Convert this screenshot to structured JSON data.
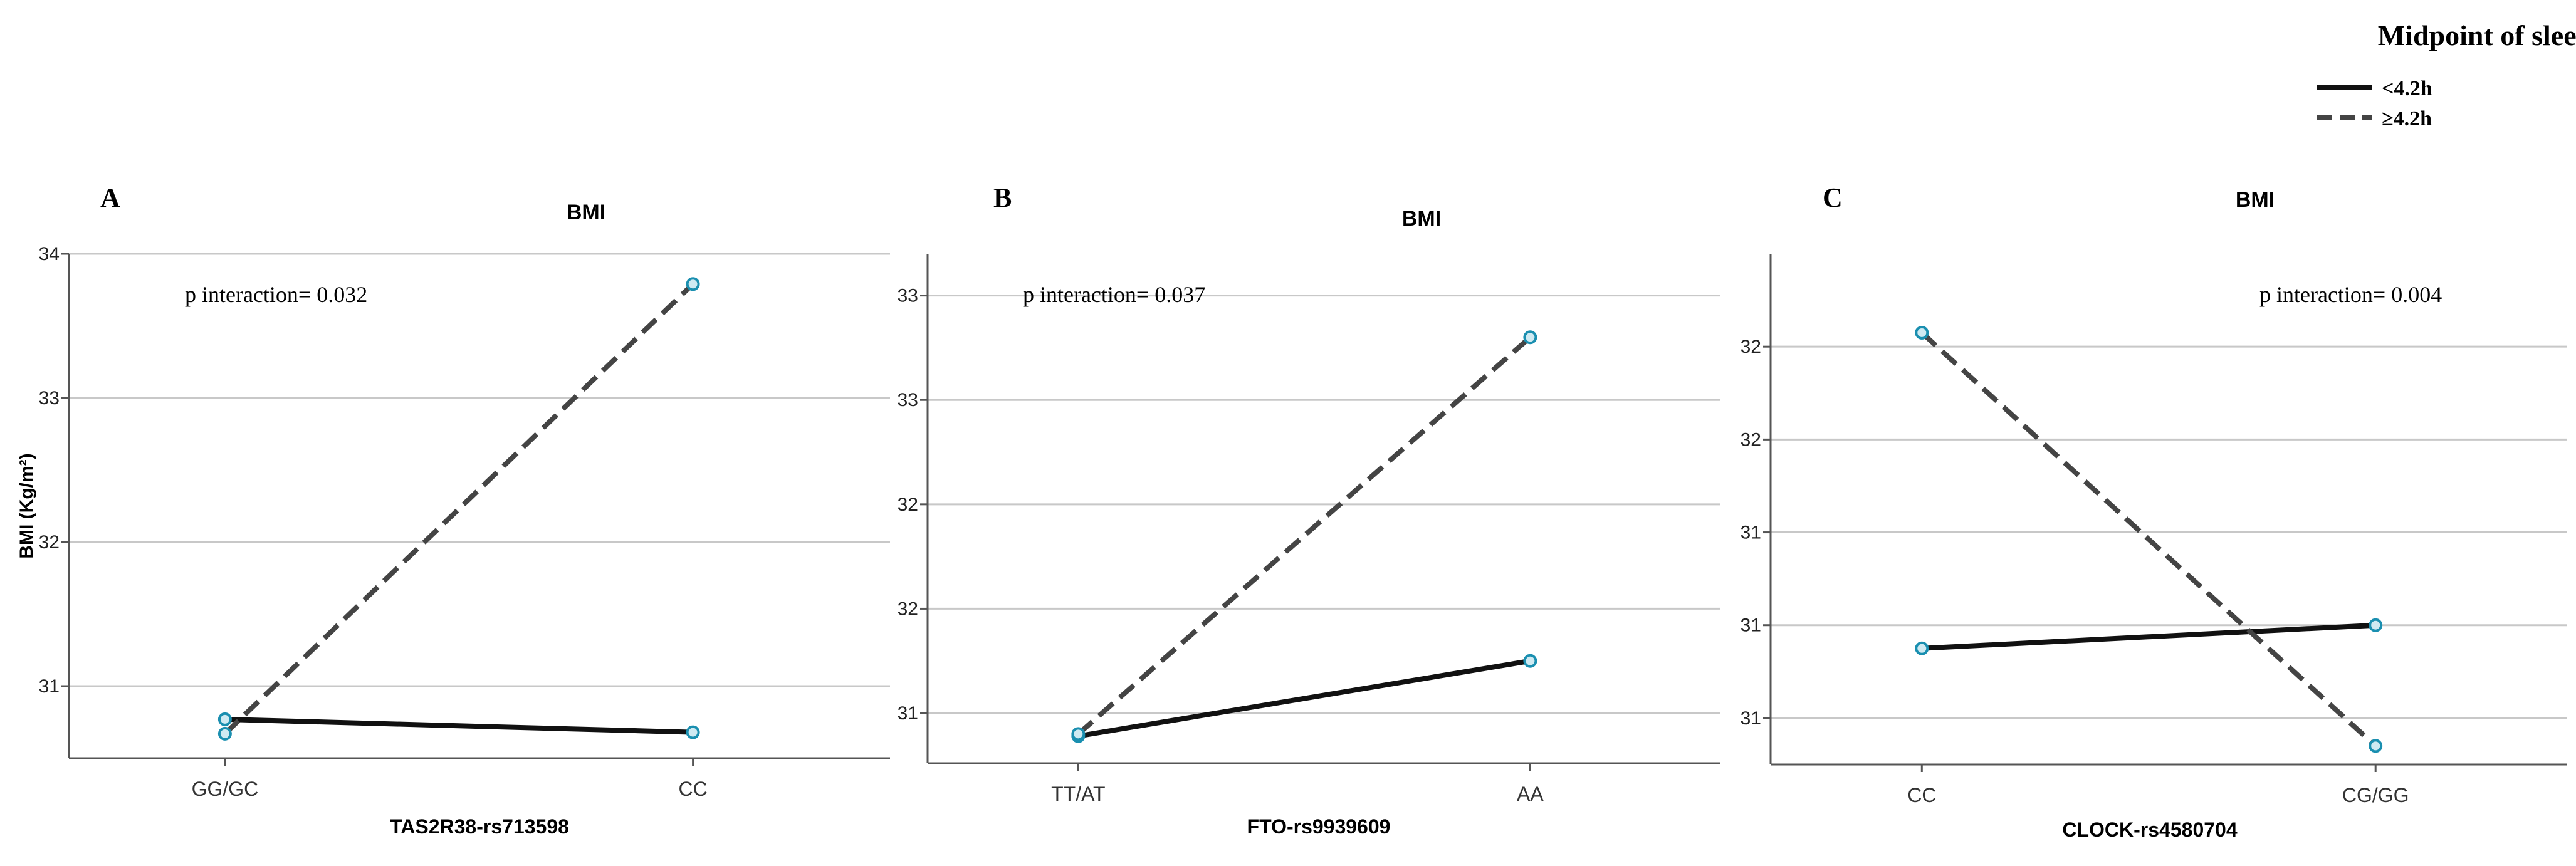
{
  "legend": {
    "title": "Midpoint of sleep",
    "placement": "top-right",
    "entries": [
      {
        "label": "<4.2h",
        "style": "solid"
      },
      {
        "label": "≥4.2h",
        "style": "dashed"
      }
    ]
  },
  "colors": {
    "solid_line": "#111111",
    "dashed_line": "#444444",
    "marker_stroke": "#1a8fb0",
    "marker_fill": "#cfeaf2",
    "grid": "#c8c8c8",
    "axis": "#555555"
  },
  "chart_data": [
    {
      "type": "line",
      "panel_letter": "A",
      "title": "BMI",
      "xlabel": "TAS2R38-rs713598",
      "ylabel": "BMI (Kg/m²)",
      "categories": [
        "GG/GC",
        "CC"
      ],
      "ylim": [
        30.5,
        34.0
      ],
      "y_ticks": [
        31,
        32,
        33,
        34
      ],
      "y_tick_labels": [
        "31",
        "32",
        "33",
        "34"
      ],
      "grid": true,
      "annotation": "p interaction= 0.032",
      "series": [
        {
          "name": "<4.2h",
          "values": [
            30.77,
            30.68
          ]
        },
        {
          "name": "≥4.2h",
          "values": [
            30.67,
            33.79
          ]
        }
      ]
    },
    {
      "type": "line",
      "panel_letter": "B",
      "title": "BMI",
      "xlabel": "FTO-rs9939609",
      "ylabel": "",
      "categories": [
        "TT/AT",
        "AA"
      ],
      "ylim": [
        30.56,
        33.0
      ],
      "y_ticks": [
        30.8,
        31.3,
        31.8,
        32.3,
        32.8
      ],
      "y_tick_labels": [
        "31",
        "32",
        "32",
        "33",
        "33"
      ],
      "grid": true,
      "annotation": "p interaction= 0.037",
      "series": [
        {
          "name": "<4.2h",
          "values": [
            30.69,
            31.05
          ]
        },
        {
          "name": "≥4.2h",
          "values": [
            30.7,
            32.6
          ]
        }
      ]
    },
    {
      "type": "line",
      "panel_letter": "C",
      "title": "BMI",
      "xlabel": "CLOCK-rs4580704",
      "ylabel": "",
      "categories": [
        "CC",
        "CG/GG"
      ],
      "ylim": [
        30.6,
        31.7
      ],
      "y_ticks": [
        30.7,
        30.9,
        31.1,
        31.3,
        31.5
      ],
      "y_tick_labels": [
        "31",
        "31",
        "31",
        "32",
        "32"
      ],
      "grid": true,
      "annotation": "p interaction= 0.004",
      "series": [
        {
          "name": "<4.2h",
          "values": [
            30.85,
            30.9
          ]
        },
        {
          "name": "≥4.2h",
          "values": [
            31.53,
            30.64
          ]
        }
      ]
    }
  ]
}
